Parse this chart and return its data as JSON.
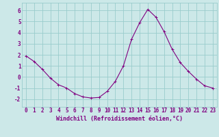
{
  "x": [
    0,
    1,
    2,
    3,
    4,
    5,
    6,
    7,
    8,
    9,
    10,
    11,
    12,
    13,
    14,
    15,
    16,
    17,
    18,
    19,
    20,
    21,
    22,
    23
  ],
  "y": [
    1.9,
    1.4,
    0.7,
    -0.1,
    -0.7,
    -1.0,
    -1.5,
    -1.8,
    -1.9,
    -1.85,
    -1.3,
    -0.4,
    1.0,
    3.4,
    4.9,
    6.1,
    5.4,
    4.1,
    2.5,
    1.3,
    0.5,
    -0.2,
    -0.8,
    -1.0
  ],
  "line_color": "#800080",
  "marker": "+",
  "bg_color": "#cce8e8",
  "grid_color": "#99cccc",
  "xlabel": "Windchill (Refroidissement éolien,°C)",
  "xlabel_color": "#800080",
  "ylabel_ticks": [
    -2,
    -1,
    0,
    1,
    2,
    3,
    4,
    5,
    6
  ],
  "xlim": [
    -0.5,
    23.5
  ],
  "ylim": [
    -2.7,
    6.7
  ],
  "tick_color": "#800080",
  "axis_label_fontsize": 6,
  "tick_fontsize": 5.5
}
